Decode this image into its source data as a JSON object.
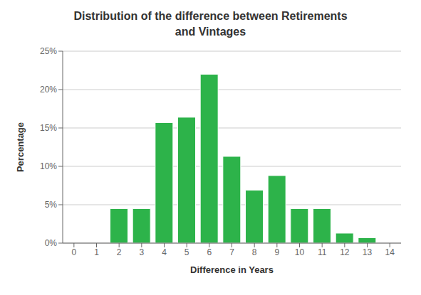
{
  "chart_data": {
    "type": "bar",
    "title": "Distribution of the difference between Retirements\nand Vintages",
    "xlabel": "Difference in Years",
    "ylabel": "Percentage",
    "categories": [
      0,
      1,
      2,
      3,
      4,
      5,
      6,
      7,
      8,
      9,
      10,
      11,
      12,
      13,
      14
    ],
    "values": [
      0,
      0,
      4.5,
      4.5,
      15.7,
      16.4,
      22.0,
      11.3,
      6.9,
      8.8,
      4.5,
      4.5,
      1.3,
      0.7,
      0
    ],
    "color": "#2db34a",
    "ylim": [
      0,
      25
    ],
    "yticks": [
      {
        "value": 0,
        "label": "0%"
      },
      {
        "value": 5,
        "label": "5%"
      },
      {
        "value": 10,
        "label": "10%"
      },
      {
        "value": 15,
        "label": "15%"
      },
      {
        "value": 20,
        "label": "20%"
      },
      {
        "value": 25,
        "label": "25%"
      }
    ],
    "grid": true
  }
}
